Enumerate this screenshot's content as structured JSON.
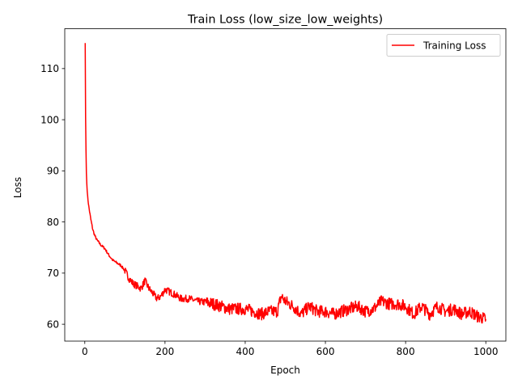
{
  "chart_data": {
    "type": "line",
    "title": "Train Loss (low_size_low_weights)",
    "xlabel": "Epoch",
    "ylabel": "Loss",
    "xlim": [
      -50,
      1050
    ],
    "ylim": [
      56.7,
      117.8
    ],
    "xticks": [
      0,
      200,
      400,
      600,
      800,
      1000
    ],
    "yticks": [
      60,
      70,
      80,
      90,
      100,
      110
    ],
    "grid": false,
    "legend_position": "top-right",
    "series": [
      {
        "name": "Training Loss",
        "color": "#ff0000",
        "x": [
          1,
          2,
          3,
          4,
          5,
          7,
          10,
          15,
          20,
          25,
          30,
          40,
          50,
          60,
          70,
          80,
          90,
          100,
          110,
          120,
          130,
          140,
          150,
          160,
          170,
          180,
          190,
          200,
          220,
          240,
          260,
          280,
          300,
          320,
          340,
          360,
          380,
          400,
          420,
          440,
          460,
          480,
          490,
          500,
          520,
          540,
          560,
          580,
          600,
          620,
          640,
          660,
          680,
          700,
          720,
          740,
          760,
          780,
          800,
          820,
          840,
          860,
          880,
          900,
          920,
          940,
          960,
          980,
          1000
        ],
        "y": [
          115.0,
          100.5,
          94.0,
          89.5,
          87.5,
          85.0,
          83.0,
          80.5,
          78.5,
          77.3,
          76.5,
          75.5,
          74.8,
          73.5,
          72.5,
          72.0,
          71.5,
          70.5,
          69.0,
          68.0,
          67.5,
          67.0,
          68.5,
          67.0,
          66.0,
          65.0,
          65.5,
          66.8,
          66.0,
          65.0,
          65.0,
          64.5,
          64.3,
          64.0,
          63.5,
          63.0,
          63.0,
          63.0,
          62.5,
          62.0,
          62.5,
          62.5,
          65.5,
          64.5,
          63.5,
          62.0,
          63.5,
          62.5,
          62.5,
          62.0,
          62.5,
          63.0,
          63.5,
          62.5,
          63.0,
          64.5,
          64.0,
          64.0,
          63.5,
          62.0,
          63.5,
          62.0,
          63.5,
          62.5,
          63.0,
          62.0,
          62.5,
          61.5,
          61.0
        ]
      }
    ]
  }
}
